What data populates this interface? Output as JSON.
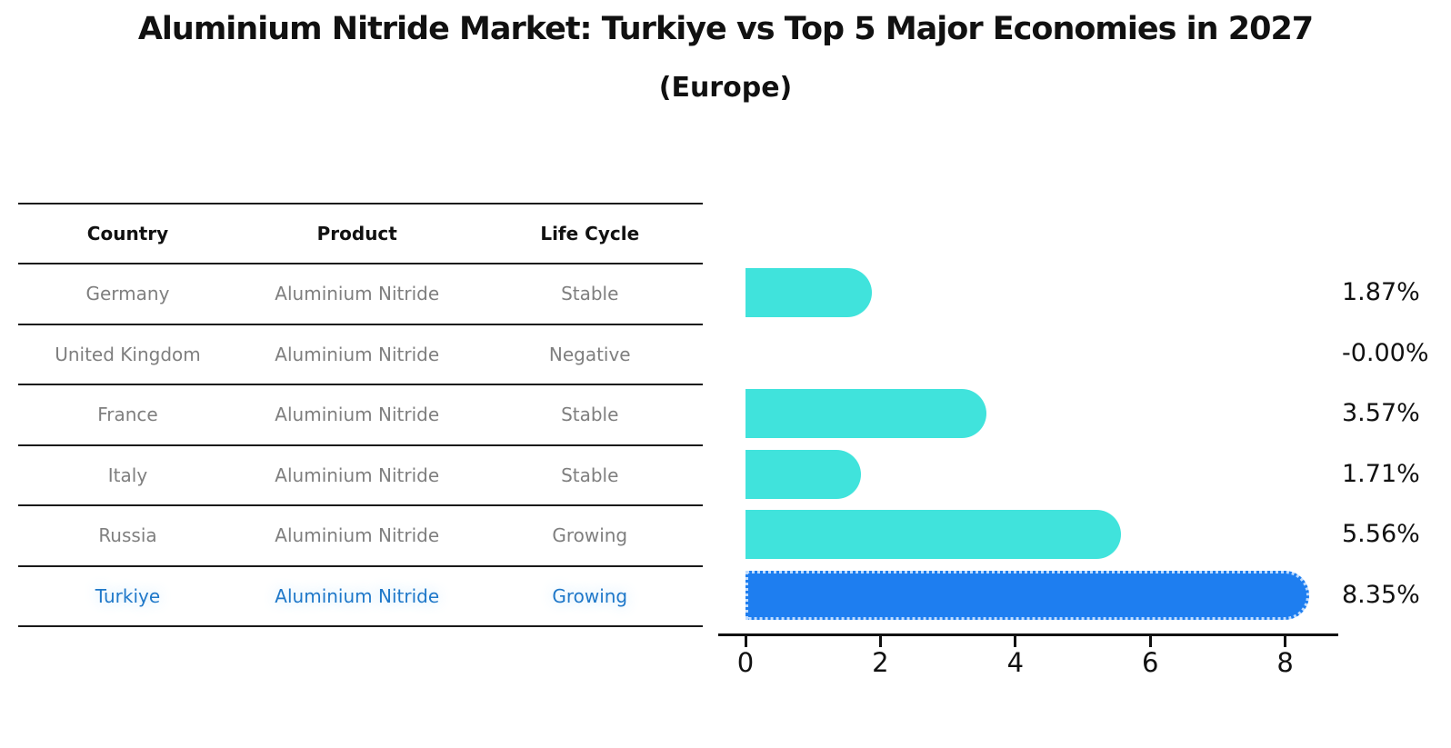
{
  "title": "Aluminium Nitride Market: Turkiye vs Top 5 Major Economies in 2027",
  "subtitle": "(Europe)",
  "table": {
    "headers": [
      "Country",
      "Product",
      "Life Cycle"
    ],
    "rows": [
      {
        "country": "Germany",
        "product": "Aluminium Nitride",
        "life_cycle": "Stable",
        "highlight": false
      },
      {
        "country": "United Kingdom",
        "product": "Aluminium Nitride",
        "life_cycle": "Negative",
        "highlight": false
      },
      {
        "country": "France",
        "product": "Aluminium Nitride",
        "life_cycle": "Stable",
        "highlight": false
      },
      {
        "country": "Italy",
        "product": "Aluminium Nitride",
        "life_cycle": "Stable",
        "highlight": false
      },
      {
        "country": "Russia",
        "product": "Aluminium Nitride",
        "life_cycle": "Growing",
        "highlight": false
      },
      {
        "country": "Turkiye",
        "product": "Aluminium Nitride",
        "life_cycle": "Growing",
        "highlight": true
      }
    ]
  },
  "chart_data": {
    "type": "bar",
    "orientation": "horizontal",
    "categories": [
      "Germany",
      "United Kingdom",
      "France",
      "Italy",
      "Russia",
      "Turkiye"
    ],
    "values": [
      1.87,
      -0.0,
      3.57,
      1.71,
      5.56,
      8.35
    ],
    "value_labels": [
      "1.87%",
      "-0.00%",
      "3.57%",
      "1.71%",
      "5.56%",
      "8.35%"
    ],
    "title": "Aluminium Nitride Market: Turkiye vs Top 5 Major Economies in 2027 (Europe)",
    "xlabel": "",
    "ylabel": "",
    "x_ticks": [
      0,
      2,
      4,
      6,
      8
    ],
    "x_tick_labels": [
      "0",
      "2",
      "4",
      "6",
      "8"
    ],
    "xlim": [
      -0.4,
      8.8
    ],
    "grid": false,
    "legend": null,
    "highlight_index": 5,
    "bar_color": "#40E3DC",
    "highlight_color": "#1E7EF0"
  },
  "colors": {
    "bar_cyan": "#40E3DC",
    "bar_blue": "#1E7EF0",
    "highlight_text": "#1F78C9",
    "table_text": "#7f7f7f",
    "header_text": "#111111",
    "line": "#1a1a1a"
  }
}
